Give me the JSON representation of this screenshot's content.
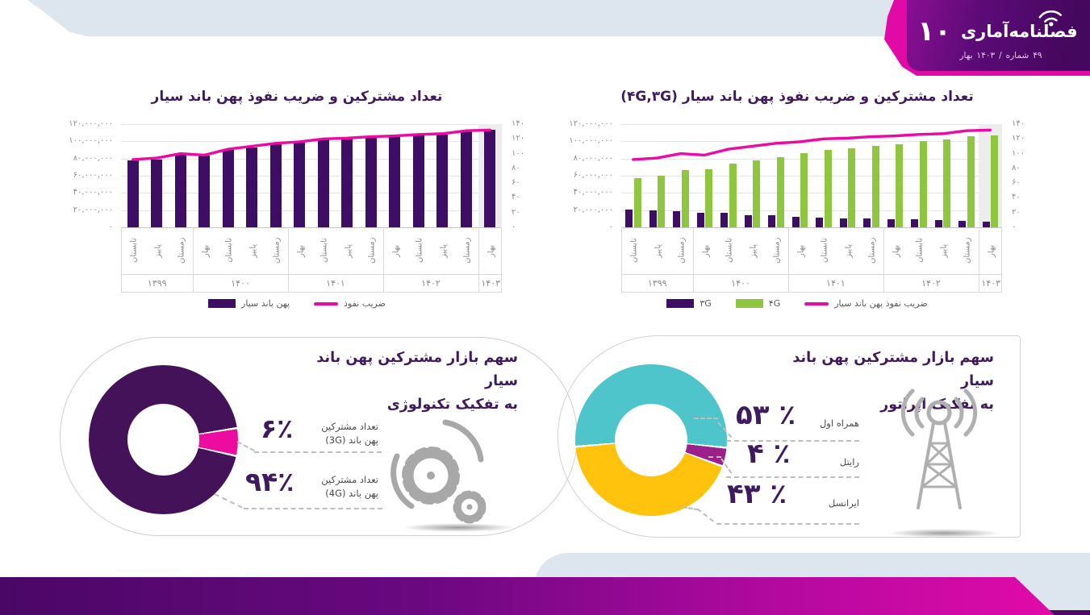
{
  "header": {
    "page_number": "۱۰",
    "title": "فصلنامه‌آماری",
    "subtitle_parts": [
      "بهار",
      "۱۴۰۳",
      "/",
      "شماره",
      "۴۹"
    ]
  },
  "colors": {
    "bar_purple": "#3d0e63",
    "line_pink": "#ee0aa2",
    "green_4g": "#8ec63f",
    "teal_hamrah": "#4ec4cb",
    "purple_rightel": "#9c2089",
    "yellow_irancell": "#ffc30d",
    "donut_pink_3g": "#ec0da0",
    "donut_purple_4g": "#431259",
    "title_purple": "#3f1b5b",
    "band_gray_blue": "#dde6ee",
    "banner_gradient": [
      "#8b0f93",
      "#45085f"
    ],
    "footer_gradient": [
      "#4a0766",
      "#e20aa8"
    ]
  },
  "chart_data": [
    {
      "type": "bar",
      "title": "تعداد مشترکین و ضریب نفوذ پهن باند سیار",
      "title_paren": "",
      "categories": [
        "تابستان",
        "پاییز",
        "زمستان",
        "بهار",
        "تابستان",
        "پاییز",
        "زمستان",
        "بهار",
        "تابستان",
        "پاییز",
        "زمستان",
        "بهار",
        "تابستان",
        "پاییز",
        "زمستان",
        "بهار"
      ],
      "year_groups": [
        {
          "label": "۱۳۹۹",
          "count": 3
        },
        {
          "label": "۱۴۰۰",
          "count": 4
        },
        {
          "label": "۱۴۰۱",
          "count": 4
        },
        {
          "label": "۱۴۰۲",
          "count": 4
        },
        {
          "label": "۱۴۰۳",
          "count": 1
        }
      ],
      "series": [
        {
          "name": "پهن باند سیار",
          "color": "#3d0e63",
          "values": [
            78000000,
            79000000,
            85000000,
            83000000,
            90000000,
            93000000,
            97000000,
            98000000,
            102000000,
            103000000,
            105000000,
            105000000,
            107000000,
            108000000,
            112000000,
            113000000
          ]
        }
      ],
      "line": {
        "name": "ضریب نفوذ",
        "color": "#ee0aa2",
        "values": [
          92,
          94,
          100,
          98,
          106,
          110,
          114,
          116,
          120,
          121,
          123,
          124,
          126,
          127,
          131,
          132
        ]
      },
      "y_axis_left": {
        "max": 120000000,
        "labels": [
          "۱۲۰,۰۰۰,۰۰۰",
          "۱۰۰,۰۰۰,۰۰۰",
          "۸۰,۰۰۰,۰۰۰",
          "۶۰,۰۰۰,۰۰۰",
          "۴۰,۰۰۰,۰۰۰",
          "۲۰,۰۰۰,۰۰۰",
          "۰"
        ]
      },
      "y_axis_right": {
        "max": 140,
        "labels": [
          "۱۴۰",
          "۱۲۰",
          "۱۰۰",
          "۸۰",
          "۶۰",
          "۴۰",
          "۲۰",
          "۰"
        ]
      },
      "legend": [
        {
          "label": "ضریب نفوذ",
          "swatch": "line",
          "color": "#ee0aa2"
        },
        {
          "label": "پهن باند سیار",
          "swatch": "rect",
          "color": "#3d0e63"
        }
      ]
    },
    {
      "type": "bar",
      "title": "تعداد مشترکین و ضریب نفوذ پهن باند سیار",
      "title_paren": "(۴G,۳G)",
      "categories": [
        "تابستان",
        "پاییز",
        "زمستان",
        "بهار",
        "تابستان",
        "پاییز",
        "زمستان",
        "بهار",
        "تابستان",
        "پاییز",
        "زمستان",
        "بهار",
        "تابستان",
        "پاییز",
        "زمستان",
        "بهار"
      ],
      "year_groups": [
        {
          "label": "۱۳۹۹",
          "count": 3
        },
        {
          "label": "۱۴۰۰",
          "count": 4
        },
        {
          "label": "۱۴۰۱",
          "count": 4
        },
        {
          "label": "۱۴۰۲",
          "count": 4
        },
        {
          "label": "۱۴۰۳",
          "count": 1
        }
      ],
      "series": [
        {
          "name": "۳G",
          "color": "#3d0e63",
          "values": [
            20500000,
            20000000,
            19000000,
            16500000,
            16500000,
            14000000,
            14000000,
            12000000,
            11500000,
            10500000,
            10000000,
            9500000,
            9000000,
            8000000,
            7500000,
            7000000
          ]
        },
        {
          "name": "۴G",
          "color": "#8ec63f",
          "values": [
            57000000,
            60000000,
            67000000,
            67500000,
            74000000,
            78000000,
            82000000,
            86000000,
            90000000,
            92000000,
            95000000,
            97000000,
            100000000,
            102000000,
            106000000,
            107000000
          ]
        }
      ],
      "line": {
        "name": "ضریب نفوذ پهن باند سیار",
        "color": "#ee0aa2",
        "values": [
          92,
          94,
          100,
          98,
          106,
          110,
          114,
          116,
          120,
          121,
          123,
          124,
          126,
          127,
          131,
          132
        ]
      },
      "y_axis_left": {
        "max": 120000000,
        "labels": [
          "۱۲۰,۰۰۰,۰۰۰",
          "۱۰۰,۰۰۰,۰۰۰",
          "۸۰,۰۰۰,۰۰۰",
          "۶۰,۰۰۰,۰۰۰",
          "۴۰,۰۰۰,۰۰۰",
          "۲۰,۰۰۰,۰۰۰",
          "۰"
        ]
      },
      "y_axis_right": {
        "max": 140,
        "labels": [
          "۱۴۰",
          "۱۲۰",
          "۱۰۰",
          "۸۰",
          "۶۰",
          "۴۰",
          "۲۰",
          "۰"
        ]
      },
      "legend": [
        {
          "label": "ضریب نفوذ پهن باند سیار",
          "swatch": "line",
          "color": "#ee0aa2"
        },
        {
          "label": "۴G",
          "swatch": "rect",
          "color": "#8ec63f"
        },
        {
          "label": "۳G",
          "swatch": "rect",
          "color": "#3d0e63"
        }
      ]
    },
    {
      "type": "pie",
      "title": "سهم بازار مشترکین پهن باند سیار به تفکیک تکنولوژی",
      "title_lines": [
        "سهم بازار مشترکین پهن باند سیار",
        "به تفکیک تکنولوژی"
      ],
      "start_angle": 81,
      "slices": [
        {
          "name": "پهن باند (3G)",
          "label_lines": [
            "تعداد مشترکین",
            "پهن باند (3G)"
          ],
          "percent": 6,
          "value_label": "۶٪",
          "color": "#ec0da0"
        },
        {
          "name": "پهن باند (4G)",
          "label_lines": [
            "تعداد مشترکین",
            "پهن باند (4G)"
          ],
          "percent": 94,
          "value_label": "۹۴٪",
          "color": "#431259"
        }
      ]
    },
    {
      "type": "pie",
      "title": "سهم بازار مشترکین پهن باند سیار به تفکیک اپراتور",
      "title_lines": [
        "سهم بازار مشترکین پهن باند سیار",
        "به تفکیک اپراتور"
      ],
      "start_angle": 265,
      "slices": [
        {
          "name": "همراه اول",
          "percent": 53,
          "value_label": "۵۳ ٪",
          "color": "#4ec4cb"
        },
        {
          "name": "رایتل",
          "percent": 4,
          "value_label": "۴ ٪",
          "color": "#9c2089"
        },
        {
          "name": "ایرانسل",
          "percent": 43,
          "value_label": "۴۳ ٪",
          "color": "#ffc30d"
        }
      ]
    }
  ]
}
